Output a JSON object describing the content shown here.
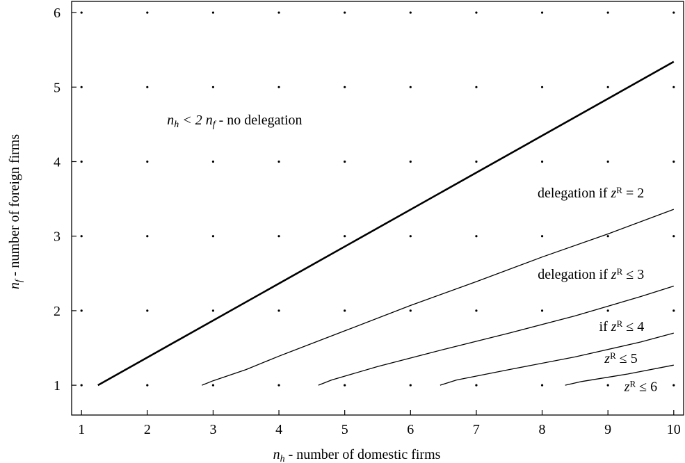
{
  "chart_data": {
    "type": "line",
    "xlabel": {
      "var": "n",
      "sub": "h",
      "text": "- number of domestic firms"
    },
    "ylabel": {
      "var": "n",
      "sub": "f",
      "text": "- number of foreign firms"
    },
    "xlim": [
      0.85,
      10.15
    ],
    "ylim": [
      0.6,
      6.15
    ],
    "xticks": [
      "1",
      "2",
      "3",
      "4",
      "5",
      "6",
      "7",
      "8",
      "9",
      "10"
    ],
    "yticks": [
      "1",
      "2",
      "3",
      "4",
      "5",
      "6"
    ],
    "grid": "dotted",
    "series": [
      {
        "id": "boundary",
        "bold": true,
        "x": [
          1.25,
          10.0
        ],
        "y": [
          1.0,
          5.34
        ]
      },
      {
        "id": "z2",
        "x": [
          2.83,
          3.0,
          3.5,
          4.0,
          5.0,
          6.0,
          7.0,
          8.0,
          9.0,
          10.0
        ],
        "y": [
          1.0,
          1.06,
          1.21,
          1.39,
          1.73,
          2.07,
          2.39,
          2.72,
          3.03,
          3.36
        ]
      },
      {
        "id": "z3",
        "x": [
          4.6,
          4.8,
          5.5,
          6.5,
          7.5,
          8.5,
          9.5,
          10.0
        ],
        "y": [
          1.0,
          1.07,
          1.25,
          1.48,
          1.7,
          1.93,
          2.19,
          2.33
        ]
      },
      {
        "id": "z4",
        "x": [
          6.45,
          6.7,
          7.5,
          8.5,
          9.5,
          10.0
        ],
        "y": [
          1.0,
          1.07,
          1.21,
          1.38,
          1.58,
          1.7
        ]
      },
      {
        "id": "z5",
        "x": [
          8.35,
          8.6,
          9.3,
          10.0
        ],
        "y": [
          1.0,
          1.05,
          1.15,
          1.27
        ]
      }
    ],
    "annotations": [
      {
        "id": "no-delegation",
        "x": 2.3,
        "y": 4.5,
        "anchor": "start",
        "parts": [
          [
            "n",
            "i"
          ],
          [
            "h",
            "sub"
          ],
          [
            " < 2 ",
            "i"
          ],
          [
            "n",
            "i"
          ],
          [
            "f",
            "sub"
          ],
          [
            "  - no delegation",
            "r"
          ]
        ]
      },
      {
        "id": "z-eq-2",
        "x": 9.55,
        "y": 3.52,
        "anchor": "end",
        "parts": [
          [
            "delegation if ",
            "r"
          ],
          [
            "z",
            "i"
          ],
          [
            "R",
            "sup"
          ],
          [
            " = 2",
            "r"
          ]
        ]
      },
      {
        "id": "z-le-3",
        "x": 9.55,
        "y": 2.43,
        "anchor": "end",
        "parts": [
          [
            "delegation if ",
            "r"
          ],
          [
            "z",
            "i"
          ],
          [
            "R",
            "sup"
          ],
          [
            " ≤ 3",
            "r"
          ]
        ]
      },
      {
        "id": "z-le-4",
        "x": 9.55,
        "y": 1.73,
        "anchor": "end",
        "parts": [
          [
            "if ",
            "r"
          ],
          [
            "z",
            "i"
          ],
          [
            "R",
            "sup"
          ],
          [
            " ≤ 4",
            "r"
          ]
        ]
      },
      {
        "id": "z-le-5",
        "x": 9.45,
        "y": 1.3,
        "anchor": "end",
        "parts": [
          [
            "z",
            "i"
          ],
          [
            "R",
            "sup"
          ],
          [
            " ≤ 5",
            "r"
          ]
        ]
      },
      {
        "id": "z-le-6",
        "x": 9.75,
        "y": 0.92,
        "anchor": "end",
        "parts": [
          [
            "z",
            "i"
          ],
          [
            "R",
            "sup"
          ],
          [
            " ≤ 6",
            "r"
          ]
        ]
      }
    ]
  }
}
